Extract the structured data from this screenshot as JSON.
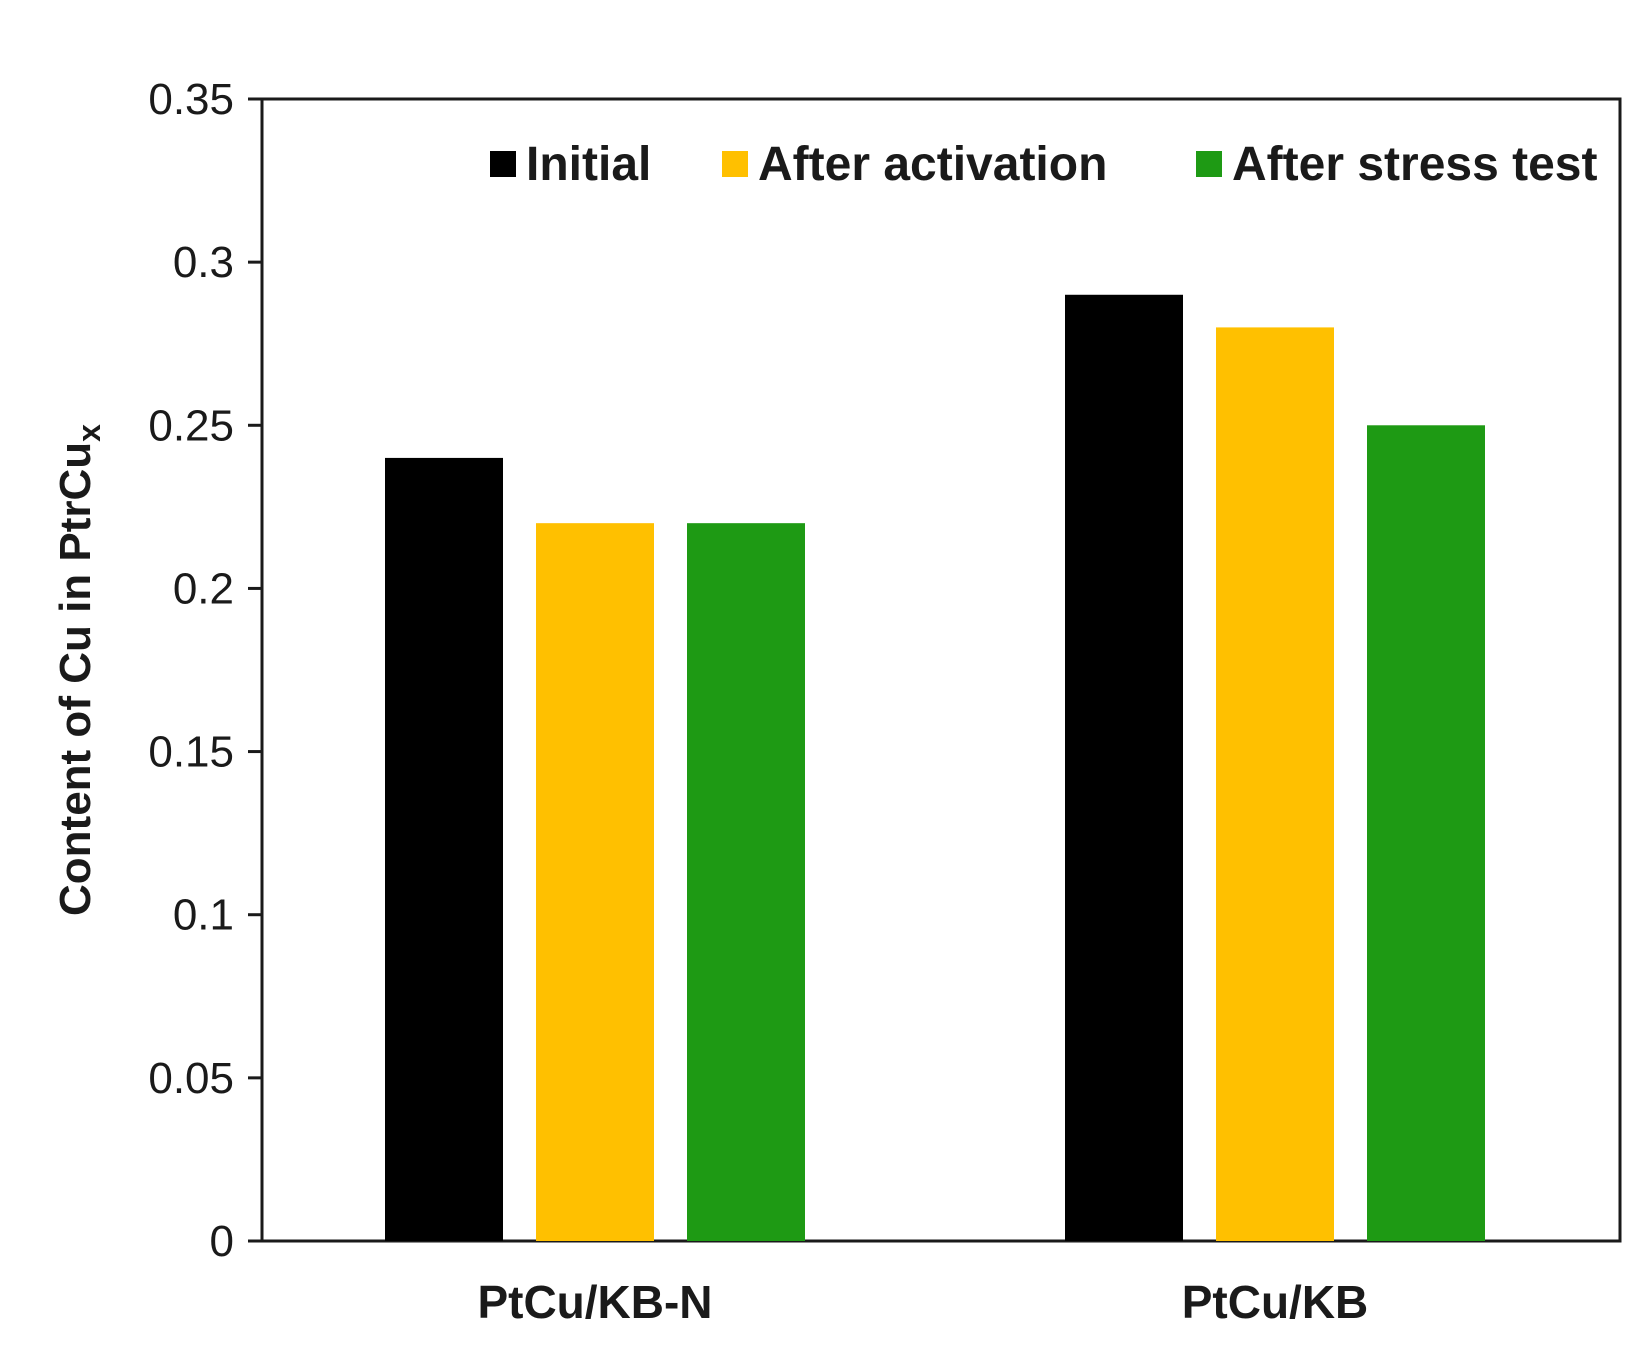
{
  "chart_data": {
    "type": "bar",
    "title": "",
    "xlabel": "",
    "ylabel_main": "Content of Cu in PtrCu",
    "ylabel_sub": "x",
    "categories": [
      "PtCu/KB-N",
      "PtCu/KB"
    ],
    "series": [
      {
        "name": "Initial",
        "color": "#000000",
        "values": [
          0.24,
          0.29
        ]
      },
      {
        "name": "After activation",
        "color": "#FFC000",
        "values": [
          0.22,
          0.28
        ]
      },
      {
        "name": "After stress test",
        "color": "#1E9A14",
        "values": [
          0.22,
          0.25
        ]
      }
    ],
    "ylim": [
      0,
      0.35
    ],
    "yticks": [
      0,
      0.05,
      0.1,
      0.15,
      0.2,
      0.25,
      0.3,
      0.35
    ],
    "ytick_labels": [
      "0",
      "0.05",
      "0.1",
      "0.15",
      "0.2",
      "0.25",
      "0.3",
      "0.35"
    ],
    "grid": false,
    "legend_position": "top"
  }
}
